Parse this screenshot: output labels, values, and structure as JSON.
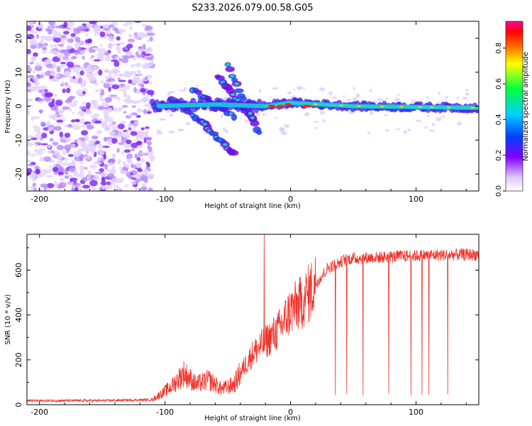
{
  "title": "S233.2026.079.00.58.G05",
  "colors": {
    "snr_line": "#f03028",
    "spectro_cloud": "#8a3cf0",
    "ridge": "#18c0e0",
    "ridge_core": "#40f080",
    "hot": "#ff2020"
  },
  "chart_data": [
    {
      "type": "heatmap",
      "name": "spectrogram",
      "xlabel": "Height of straight line (km)",
      "ylabel": "Frequency (Hz)",
      "xlim": [
        -210,
        150
      ],
      "ylim": [
        -25,
        25
      ],
      "xticks": [
        -200,
        -100,
        0,
        100
      ],
      "xtick_labels": [
        "-200",
        "-100",
        "0",
        "100"
      ],
      "yticks": [
        -20,
        -10,
        0,
        10,
        20
      ],
      "ytick_labels": [
        "-20",
        "-10",
        "0",
        "10",
        "20"
      ],
      "noise_region_x": [
        -210,
        -110
      ],
      "ridge": [
        {
          "x": -110,
          "freq": 0
        },
        {
          "x": -60,
          "freq": 0.5
        },
        {
          "x": -20,
          "freq": 0
        },
        {
          "x": 0,
          "freq": 1
        },
        {
          "x": 50,
          "freq": 0
        },
        {
          "x": 150,
          "freq": -0.5
        }
      ],
      "diagonal_streaks": [
        {
          "x0": -95,
          "f0": 2,
          "x1": -65,
          "f1": -6
        },
        {
          "x0": -78,
          "f0": 5,
          "x1": -45,
          "f1": -3
        },
        {
          "x0": -58,
          "f0": 9,
          "x1": -30,
          "f1": -4
        },
        {
          "x0": -50,
          "f0": 12,
          "x1": -25,
          "f1": -8
        },
        {
          "x0": -70,
          "f0": -5,
          "x1": -45,
          "f1": -14
        }
      ],
      "colorbar": {
        "label": "Normalized spectral amplitude",
        "range": [
          0,
          0.95
        ],
        "ticks": [
          0.0,
          0.2,
          0.4,
          0.6,
          0.8
        ],
        "tick_labels": [
          "0.0",
          "0.2",
          "0.4",
          "0.6",
          "0.8"
        ]
      }
    },
    {
      "type": "line",
      "name": "snr",
      "xlabel": "Height of straight line (km)",
      "ylabel": "SNR (10 * v/v)",
      "xlim": [
        -210,
        150
      ],
      "ylim": [
        0,
        760
      ],
      "xticks": [
        -200,
        -100,
        0,
        100
      ],
      "xtick_labels": [
        "-200",
        "-100",
        "0",
        "100"
      ],
      "yticks": [
        0,
        200,
        400,
        600
      ],
      "ytick_labels": [
        "0",
        "200",
        "400",
        "600"
      ],
      "envelope": [
        {
          "x": -210,
          "y": 18
        },
        {
          "x": -150,
          "y": 18
        },
        {
          "x": -110,
          "y": 22
        },
        {
          "x": -95,
          "y": 80
        },
        {
          "x": -85,
          "y": 140
        },
        {
          "x": -75,
          "y": 90
        },
        {
          "x": -65,
          "y": 110
        },
        {
          "x": -55,
          "y": 70
        },
        {
          "x": -45,
          "y": 90
        },
        {
          "x": -38,
          "y": 160
        },
        {
          "x": -30,
          "y": 230
        },
        {
          "x": -20,
          "y": 280
        },
        {
          "x": -10,
          "y": 330
        },
        {
          "x": 0,
          "y": 420
        },
        {
          "x": 10,
          "y": 460
        },
        {
          "x": 20,
          "y": 540
        },
        {
          "x": 30,
          "y": 610
        },
        {
          "x": 45,
          "y": 650
        },
        {
          "x": 60,
          "y": 655
        },
        {
          "x": 80,
          "y": 660
        },
        {
          "x": 100,
          "y": 665
        },
        {
          "x": 120,
          "y": 668
        },
        {
          "x": 150,
          "y": 670
        }
      ],
      "spike": {
        "x": -21,
        "y": 760
      },
      "dropout_floor": 40
    }
  ]
}
